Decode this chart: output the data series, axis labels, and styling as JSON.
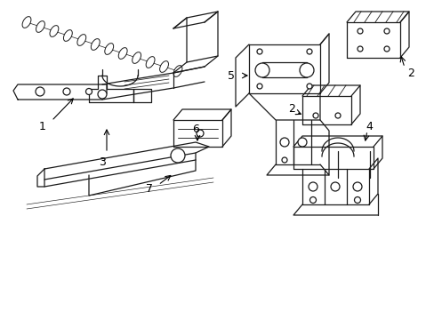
{
  "background_color": "#ffffff",
  "line_color": "#1a1a1a",
  "label_color": "#000000",
  "fig_width": 4.89,
  "fig_height": 3.6,
  "dpi": 100
}
